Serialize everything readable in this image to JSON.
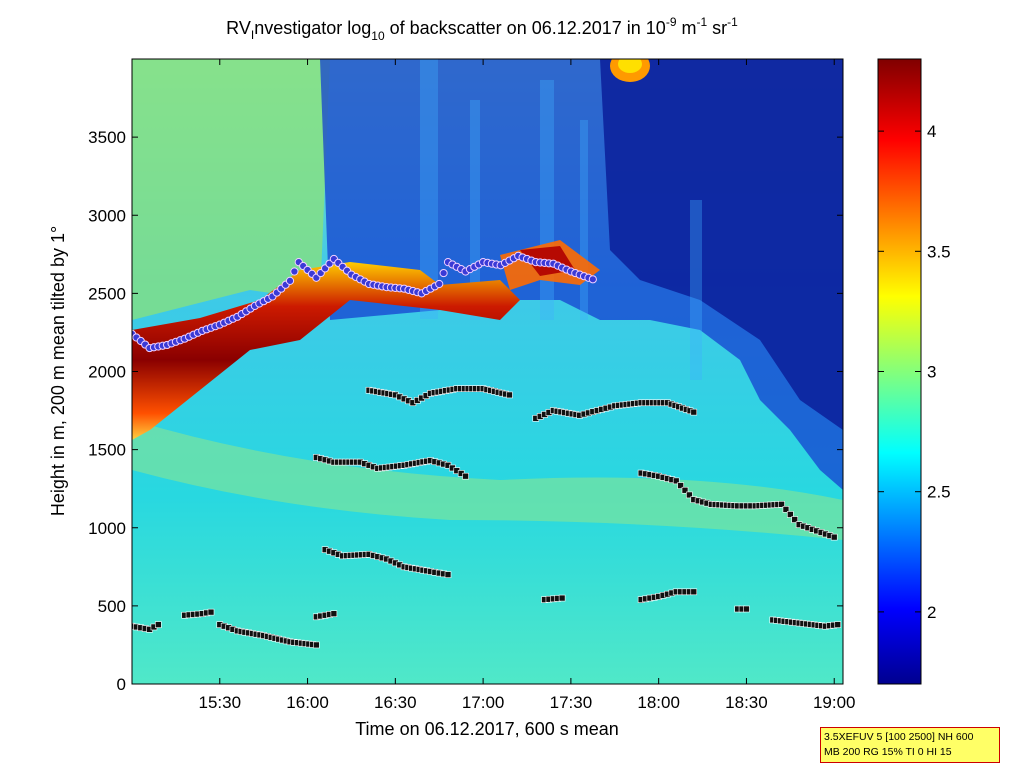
{
  "chart_data": {
    "type": "heatmap",
    "title": {
      "prefix": "RV",
      "sub_i": "I",
      "part1": "nvestigator log",
      "sub_10": "10",
      "part2": " of backscatter on 06.12.2017 in 10",
      "sup_m9": "-9",
      "part3": " m",
      "sup_m1": "-1",
      "part4": " sr",
      "sup_m1b": "-1"
    },
    "xlabel": "Time on 06.12.2017, 600 s mean",
    "ylabel": "Height in m, 200 m mean tilted by 1°",
    "x_range_hours": [
      15.0,
      19.05
    ],
    "y_range_m": [
      0,
      4000
    ],
    "x_ticks": [
      {
        "value": 15.5,
        "label": "15:30"
      },
      {
        "value": 16.0,
        "label": "16:00"
      },
      {
        "value": 16.5,
        "label": "16:30"
      },
      {
        "value": 17.0,
        "label": "17:00"
      },
      {
        "value": 17.5,
        "label": "17:30"
      },
      {
        "value": 18.0,
        "label": "18:00"
      },
      {
        "value": 18.5,
        "label": "18:30"
      },
      {
        "value": 19.0,
        "label": "19:00"
      }
    ],
    "y_ticks": [
      {
        "value": 0,
        "label": "0"
      },
      {
        "value": 500,
        "label": "500"
      },
      {
        "value": 1000,
        "label": "1000"
      },
      {
        "value": 1500,
        "label": "1500"
      },
      {
        "value": 2000,
        "label": "2000"
      },
      {
        "value": 2500,
        "label": "2500"
      },
      {
        "value": 3000,
        "label": "3000"
      },
      {
        "value": 3500,
        "label": "3500"
      }
    ],
    "colorbar": {
      "range": [
        1.7,
        4.3
      ],
      "colormap": "jet",
      "ticks": [
        {
          "value": 2,
          "label": "2"
        },
        {
          "value": 2.5,
          "label": "2.5"
        },
        {
          "value": 3,
          "label": "3"
        },
        {
          "value": 3.5,
          "label": "3.5"
        },
        {
          "value": 4,
          "label": "4"
        }
      ]
    },
    "cloud_base_line": {
      "name": "",
      "color": "#3a3ad6",
      "points": [
        [
          15.0,
          2240
        ],
        [
          15.1,
          2150
        ],
        [
          15.2,
          2170
        ],
        [
          15.3,
          2210
        ],
        [
          15.4,
          2260
        ],
        [
          15.5,
          2300
        ],
        [
          15.6,
          2350
        ],
        [
          15.7,
          2420
        ],
        [
          15.8,
          2480
        ],
        [
          15.9,
          2580
        ],
        [
          15.95,
          2700
        ],
        [
          16.05,
          2600
        ],
        [
          16.15,
          2720
        ],
        [
          16.25,
          2620
        ],
        [
          16.35,
          2560
        ],
        [
          16.45,
          2540
        ],
        [
          16.55,
          2530
        ],
        [
          16.65,
          2500
        ],
        [
          16.75,
          2560
        ],
        [
          16.8,
          2700
        ],
        [
          16.9,
          2640
        ],
        [
          17.0,
          2700
        ],
        [
          17.1,
          2680
        ],
        [
          17.2,
          2740
        ],
        [
          17.3,
          2700
        ],
        [
          17.4,
          2690
        ],
        [
          17.5,
          2640
        ],
        [
          17.6,
          2600
        ],
        [
          17.65,
          2580
        ]
      ]
    },
    "layer_markers": {
      "color": "#111111",
      "segments": [
        [
          [
            15.0,
            370
          ],
          [
            15.1,
            350
          ],
          [
            15.15,
            380
          ]
        ],
        [
          [
            15.3,
            440
          ],
          [
            15.4,
            450
          ],
          [
            15.45,
            460
          ]
        ],
        [
          [
            15.5,
            380
          ],
          [
            15.6,
            340
          ],
          [
            15.75,
            310
          ],
          [
            15.9,
            270
          ],
          [
            16.05,
            250
          ]
        ],
        [
          [
            16.05,
            430
          ],
          [
            16.15,
            450
          ]
        ],
        [
          [
            16.1,
            860
          ],
          [
            16.2,
            820
          ],
          [
            16.35,
            830
          ],
          [
            16.45,
            800
          ],
          [
            16.55,
            750
          ],
          [
            16.7,
            720
          ],
          [
            16.8,
            700
          ]
        ],
        [
          [
            16.05,
            1450
          ],
          [
            16.15,
            1420
          ],
          [
            16.3,
            1420
          ],
          [
            16.4,
            1380
          ],
          [
            16.55,
            1400
          ],
          [
            16.7,
            1430
          ],
          [
            16.8,
            1400
          ],
          [
            16.9,
            1330
          ]
        ],
        [
          [
            16.35,
            1880
          ],
          [
            16.5,
            1850
          ],
          [
            16.6,
            1800
          ],
          [
            16.7,
            1860
          ],
          [
            16.85,
            1890
          ],
          [
            17.0,
            1890
          ],
          [
            17.15,
            1850
          ]
        ],
        [
          [
            17.35,
            540
          ],
          [
            17.45,
            550
          ]
        ],
        [
          [
            17.3,
            1700
          ],
          [
            17.4,
            1750
          ],
          [
            17.55,
            1720
          ],
          [
            17.65,
            1750
          ],
          [
            17.75,
            1780
          ],
          [
            17.9,
            1800
          ],
          [
            18.05,
            1800
          ],
          [
            18.2,
            1740
          ]
        ],
        [
          [
            17.9,
            540
          ],
          [
            18.0,
            560
          ],
          [
            18.1,
            590
          ],
          [
            18.2,
            590
          ]
        ],
        [
          [
            17.9,
            1350
          ],
          [
            18.0,
            1330
          ],
          [
            18.1,
            1300
          ],
          [
            18.2,
            1180
          ],
          [
            18.3,
            1150
          ],
          [
            18.45,
            1140
          ],
          [
            18.55,
            1140
          ],
          [
            18.7,
            1150
          ],
          [
            18.8,
            1020
          ],
          [
            18.9,
            980
          ],
          [
            19.0,
            940
          ]
        ],
        [
          [
            18.45,
            480
          ],
          [
            18.5,
            480
          ]
        ],
        [
          [
            18.65,
            410
          ],
          [
            18.8,
            390
          ],
          [
            18.95,
            370
          ],
          [
            19.02,
            380
          ]
        ]
      ]
    },
    "color_bands": [
      {
        "name": "",
        "color": "#7a0000"
      },
      {
        "name": "",
        "color": "#ff5a00"
      },
      {
        "name": "",
        "color": "#ffff33"
      },
      {
        "name": "",
        "color": "#2c5ae8"
      },
      {
        "name": "",
        "color": "#0a1f9a"
      }
    ]
  },
  "info_box": {
    "line1": "3.5XEFUV 5 [100 2500] NH 600",
    "line2": "MB 200 RG 15% TI 0 HI 15"
  }
}
